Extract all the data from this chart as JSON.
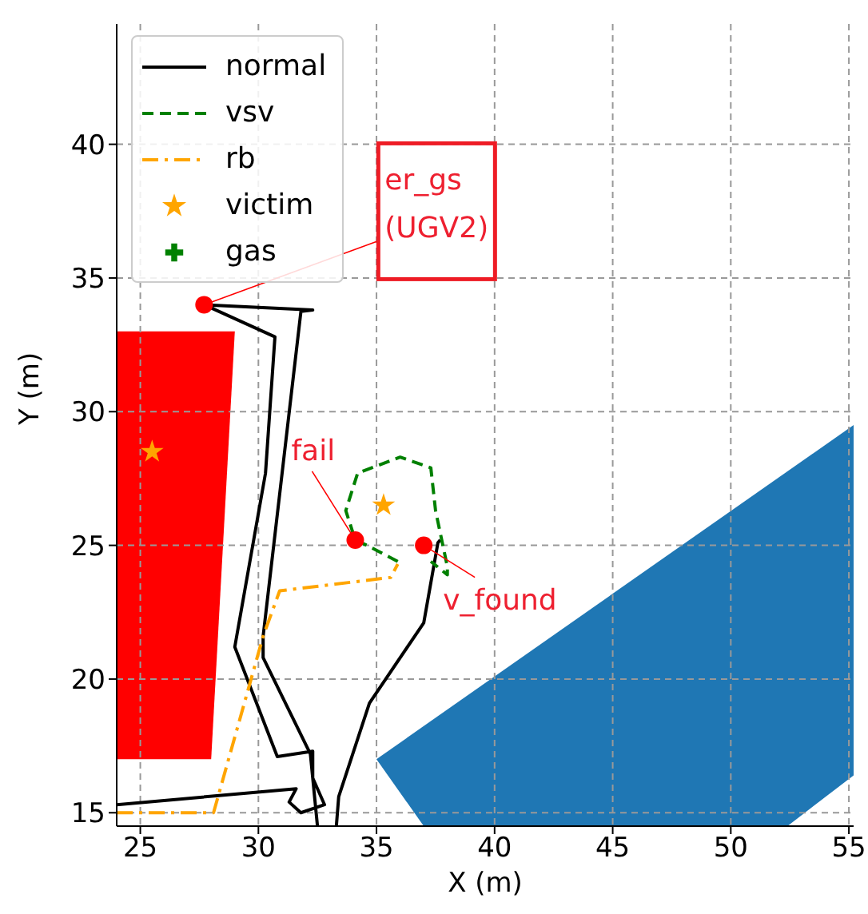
{
  "chart_data": {
    "type": "line",
    "xlabel": "X (m)",
    "ylabel": "Y (m)",
    "xlim": [
      24,
      55.2
    ],
    "ylim": [
      14.5,
      44.5
    ],
    "xticks": [
      25,
      30,
      35,
      40,
      45,
      50,
      55
    ],
    "yticks": [
      15,
      20,
      25,
      30,
      35,
      40
    ],
    "grid": true,
    "legend": "top left",
    "series": [
      {
        "name": "normal",
        "color": "#000000",
        "line_style": "solid",
        "marker": "none",
        "x": [
          24,
          31.6,
          31.3,
          31.8,
          32.8,
          32.3,
          32.3,
          30.8,
          29.0,
          30.3,
          30.7,
          27.7,
          32.3,
          31.8,
          30.2,
          30.2,
          32.2,
          32.5
        ],
        "values": [
          15.3,
          15.9,
          15.4,
          15.0,
          15.3,
          16.3,
          17.3,
          17.1,
          21.2,
          27.7,
          32.8,
          34.0,
          33.8,
          33.75,
          21.6,
          20.8,
          17.2,
          14.5
        ]
      },
      {
        "type": "line",
        "color": "#000000",
        "line_style": "solid",
        "marker": "none",
        "x": [
          33.3,
          33.4,
          34.7,
          37.0,
          37.6,
          37.7
        ],
        "values": [
          14.5,
          15.6,
          19.1,
          22.1,
          25.1,
          25.2
        ]
      },
      {
        "name": "vsv",
        "color": "#008000",
        "line_style": "dashed",
        "marker": "none",
        "x": [
          35.9,
          34.6,
          34.1,
          33.7,
          34.2,
          36.0,
          37.3,
          37.5,
          38.0,
          38.0,
          37.3
        ],
        "values": [
          24.4,
          25.0,
          25.2,
          26.3,
          27.7,
          28.3,
          27.9,
          26.3,
          24.2,
          23.9,
          24.4
        ]
      },
      {
        "name": "rb",
        "color": "#ffa500",
        "line_style": "dashdot",
        "marker": "none",
        "x": [
          24,
          28.1,
          30.2,
          30.9,
          35.6,
          35.9
        ],
        "values": [
          15.0,
          15.0,
          21.6,
          23.3,
          23.8,
          24.3
        ]
      },
      {
        "name": "victim",
        "type": "scatter",
        "color": "#ffa500",
        "marker": "star",
        "x": [
          25.5,
          35.3
        ],
        "values": [
          28.5,
          26.5
        ]
      },
      {
        "name": "gas",
        "type": "scatter",
        "color": "#008000",
        "marker": "cross"
      }
    ],
    "annotations": [
      {
        "text": "er_gs\n(UGV2)",
        "x": 27.7,
        "y": 34.0
      },
      {
        "text": "fail",
        "x": 34.1,
        "y": 25.2
      },
      {
        "text": "v_found",
        "x": 37.0,
        "y": 25.0
      }
    ]
  }
}
